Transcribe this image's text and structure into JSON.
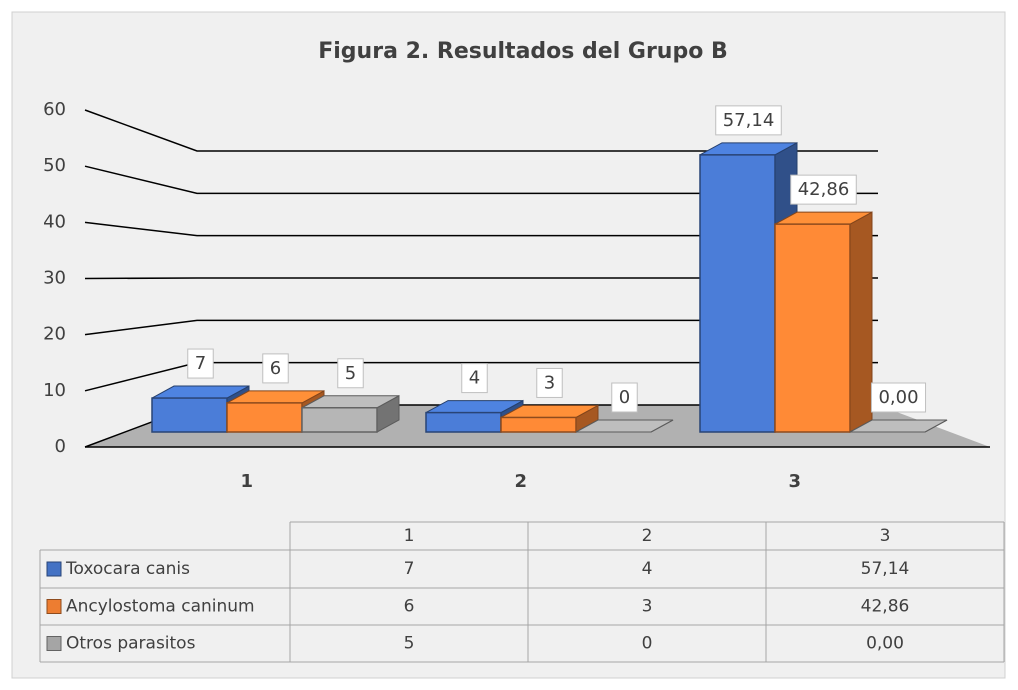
{
  "chart_data": {
    "type": "bar3d",
    "title": "Figura 2. Resultados del Grupo B",
    "categories": [
      "1",
      "2",
      "3"
    ],
    "series": [
      {
        "name": "Toxocara canis",
        "color": "#4472c4",
        "values": [
          7,
          4,
          57.14
        ],
        "value_labels": [
          "7",
          "4",
          "57,14"
        ]
      },
      {
        "name": "Ancylostoma caninum",
        "color": "#ed7d31",
        "values": [
          6,
          3,
          42.86
        ],
        "value_labels": [
          "6",
          "3",
          "42,86"
        ]
      },
      {
        "name": "Otros parasitos",
        "color": "#a5a5a5",
        "values": [
          5,
          0,
          0
        ],
        "value_labels": [
          "5",
          "0",
          "0,00"
        ]
      }
    ],
    "ylim": [
      0,
      60
    ],
    "yticks": [
      0,
      10,
      20,
      30,
      40,
      50,
      60
    ],
    "grid": true,
    "data_table": true
  }
}
